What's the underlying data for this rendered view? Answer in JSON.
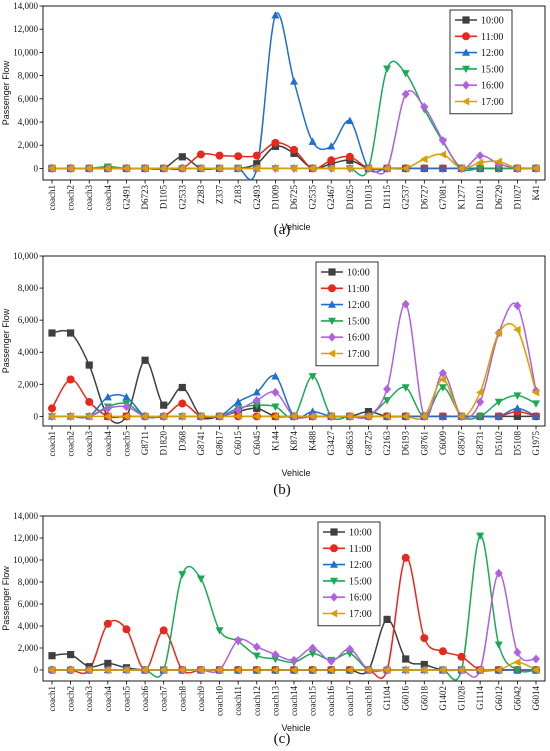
{
  "figure": {
    "captions": [
      "(a)",
      "(b)",
      "(c)"
    ]
  },
  "chart_data": [
    {
      "type": "line",
      "caption": "(a)",
      "ylabel": "Passenger Flow",
      "xlabel": "Vehicle",
      "ylim": [
        -1000,
        14000
      ],
      "yticks": [
        0,
        2000,
        4000,
        6000,
        8000,
        10000,
        12000,
        14000
      ],
      "ytick_labels": [
        "0",
        "2,000",
        "4,000",
        "6,000",
        "8,000",
        "10,000",
        "12,000",
        "14,000"
      ],
      "legend_position": "top-right",
      "categories": [
        "coach1",
        "coach2",
        "coach3",
        "coach4",
        "G2491",
        "D6723",
        "D1105",
        "G2533",
        "Z283",
        "Z337",
        "Z183",
        "G2493",
        "D1009",
        "D6725",
        "G2535",
        "G2467",
        "D1025",
        "D1013",
        "D1115",
        "G2537",
        "D6727",
        "G7081",
        "K1277",
        "D1021",
        "D6729",
        "D1027",
        "K41"
      ],
      "series": [
        {
          "name": "10:00",
          "color": "#3f3f3f",
          "marker": "square",
          "values": [
            0,
            0,
            0,
            0,
            0,
            0,
            0,
            1000,
            0,
            0,
            0,
            400,
            1900,
            1300,
            0,
            400,
            700,
            0,
            0,
            0,
            0,
            0,
            0,
            0,
            0,
            0,
            0
          ]
        },
        {
          "name": "11:00",
          "color": "#e8281c",
          "marker": "circle",
          "values": [
            0,
            0,
            0,
            0,
            0,
            0,
            0,
            0,
            1200,
            1100,
            1050,
            1100,
            2200,
            1600,
            0,
            700,
            1000,
            0,
            0,
            0,
            0,
            0,
            0,
            0,
            0,
            0,
            0
          ]
        },
        {
          "name": "12:00",
          "color": "#1f6fd0",
          "marker": "triangle",
          "values": [
            0,
            0,
            0,
            0,
            0,
            0,
            0,
            0,
            0,
            0,
            0,
            0,
            13200,
            7500,
            2300,
            1900,
            4100,
            0,
            0,
            0,
            0,
            0,
            0,
            0,
            0,
            0,
            0
          ]
        },
        {
          "name": "15:00",
          "color": "#1aaa55",
          "marker": "tri-down",
          "values": [
            0,
            0,
            0,
            150,
            0,
            0,
            0,
            0,
            0,
            0,
            0,
            0,
            0,
            0,
            0,
            0,
            0,
            0,
            8600,
            8200,
            5100,
            2300,
            0,
            0,
            0,
            0,
            0
          ]
        },
        {
          "name": "16:00",
          "color": "#b060e0",
          "marker": "diamond",
          "values": [
            0,
            0,
            0,
            0,
            0,
            0,
            0,
            0,
            0,
            0,
            0,
            0,
            0,
            0,
            0,
            0,
            0,
            0,
            0,
            6400,
            5300,
            2400,
            0,
            1100,
            400,
            0,
            0
          ]
        },
        {
          "name": "17:00",
          "color": "#d8a000",
          "marker": "tri-left",
          "values": [
            0,
            0,
            0,
            0,
            0,
            0,
            0,
            0,
            0,
            0,
            0,
            0,
            0,
            0,
            0,
            0,
            0,
            0,
            0,
            0,
            800,
            1200,
            0,
            500,
            600,
            0,
            0
          ]
        }
      ]
    },
    {
      "type": "line",
      "caption": "(b)",
      "ylabel": "Passenger Flow",
      "xlabel": "Vehicle",
      "ylim": [
        -600,
        10000
      ],
      "yticks": [
        0,
        2000,
        4000,
        6000,
        8000,
        10000
      ],
      "ytick_labels": [
        "0",
        "2,000",
        "4,000",
        "6,000",
        "8,000",
        "10,000"
      ],
      "legend_position": "top-center",
      "categories": [
        "coach1",
        "coach2",
        "coach3",
        "coach4",
        "coach5",
        "G8711",
        "D1820",
        "D368",
        "G8741",
        "G8617",
        "C6015",
        "C6045",
        "K144",
        "K874",
        "K488",
        "G3427",
        "G8653",
        "G8725",
        "G2163",
        "D6193",
        "G8761",
        "C6009",
        "G8507",
        "G8731",
        "D5102",
        "D5108",
        "G1975"
      ],
      "series": [
        {
          "name": "10:00",
          "color": "#3f3f3f",
          "marker": "square",
          "values": [
            5200,
            5200,
            3200,
            0,
            0,
            3500,
            700,
            1800,
            0,
            0,
            300,
            500,
            0,
            0,
            0,
            0,
            0,
            300,
            0,
            0,
            0,
            0,
            0,
            0,
            0,
            0,
            0
          ]
        },
        {
          "name": "11:00",
          "color": "#e8281c",
          "marker": "circle",
          "values": [
            500,
            2300,
            900,
            0,
            0,
            0,
            0,
            800,
            0,
            0,
            0,
            0,
            0,
            0,
            0,
            0,
            0,
            0,
            0,
            0,
            0,
            0,
            0,
            0,
            0,
            300,
            0
          ]
        },
        {
          "name": "12:00",
          "color": "#1f6fd0",
          "marker": "triangle",
          "values": [
            0,
            0,
            0,
            1200,
            1200,
            0,
            0,
            0,
            0,
            0,
            900,
            1500,
            2500,
            0,
            300,
            0,
            0,
            0,
            0,
            0,
            0,
            0,
            0,
            0,
            0,
            500,
            0
          ]
        },
        {
          "name": "15:00",
          "color": "#1aaa55",
          "marker": "tri-down",
          "values": [
            0,
            0,
            0,
            600,
            800,
            0,
            0,
            0,
            0,
            0,
            500,
            700,
            600,
            0,
            2500,
            0,
            0,
            0,
            1000,
            1800,
            0,
            1800,
            0,
            0,
            900,
            1300,
            800
          ]
        },
        {
          "name": "16:00",
          "color": "#b060e0",
          "marker": "diamond",
          "values": [
            0,
            0,
            0,
            500,
            600,
            0,
            0,
            0,
            0,
            0,
            400,
            1000,
            1500,
            0,
            0,
            0,
            0,
            0,
            1700,
            7000,
            0,
            2700,
            0,
            900,
            5200,
            6900,
            1600
          ]
        },
        {
          "name": "17:00",
          "color": "#d8a000",
          "marker": "tri-left",
          "values": [
            0,
            0,
            0,
            0,
            0,
            0,
            0,
            0,
            0,
            0,
            0,
            0,
            0,
            0,
            0,
            0,
            0,
            0,
            0,
            0,
            0,
            2300,
            0,
            1500,
            5200,
            5400,
            1500
          ]
        }
      ]
    },
    {
      "type": "line",
      "caption": "(c)",
      "ylabel": "Passenger Flow",
      "xlabel": "Vehicle",
      "ylim": [
        -1000,
        14000
      ],
      "yticks": [
        0,
        2000,
        4000,
        6000,
        8000,
        10000,
        12000,
        14000
      ],
      "ytick_labels": [
        "0",
        "2,000",
        "4,000",
        "6,000",
        "8,000",
        "10,000",
        "12,000",
        "14,000"
      ],
      "legend_position": "top-center",
      "categories": [
        "coach1",
        "coach2",
        "coach3",
        "coach4",
        "coach5",
        "coach6",
        "coach7",
        "coach8",
        "coach9",
        "coach10",
        "coach11",
        "coach12",
        "coach13",
        "coach14",
        "coach15",
        "coach16",
        "coach17",
        "coach18",
        "G1104",
        "G6016",
        "G6018",
        "G1402",
        "G1028",
        "G1114",
        "G6012",
        "G6042",
        "G6014"
      ],
      "series": [
        {
          "name": "10:00",
          "color": "#3f3f3f",
          "marker": "square",
          "values": [
            1300,
            1400,
            300,
            600,
            200,
            0,
            0,
            0,
            0,
            0,
            0,
            0,
            0,
            0,
            0,
            0,
            0,
            0,
            4600,
            1000,
            500,
            0,
            0,
            0,
            0,
            0,
            0
          ]
        },
        {
          "name": "11:00",
          "color": "#e8281c",
          "marker": "circle",
          "values": [
            0,
            0,
            0,
            4200,
            3700,
            0,
            3600,
            0,
            0,
            0,
            0,
            0,
            0,
            0,
            0,
            0,
            0,
            0,
            0,
            10200,
            2900,
            1700,
            1200,
            0,
            0,
            0,
            0
          ]
        },
        {
          "name": "12:00",
          "color": "#1f6fd0",
          "marker": "triangle",
          "values": [
            0,
            0,
            0,
            0,
            0,
            0,
            0,
            0,
            0,
            0,
            0,
            0,
            0,
            0,
            0,
            0,
            0,
            0,
            0,
            0,
            0,
            0,
            0,
            0,
            0,
            0,
            0
          ]
        },
        {
          "name": "15:00",
          "color": "#1aaa55",
          "marker": "tri-down",
          "values": [
            0,
            0,
            0,
            0,
            0,
            0,
            0,
            8700,
            8300,
            3600,
            2600,
            1300,
            1000,
            700,
            1500,
            900,
            1500,
            0,
            0,
            0,
            0,
            0,
            0,
            12200,
            2300,
            0,
            0
          ]
        },
        {
          "name": "16:00",
          "color": "#b060e0",
          "marker": "diamond",
          "values": [
            0,
            0,
            0,
            0,
            0,
            0,
            0,
            0,
            0,
            0,
            2700,
            2100,
            1400,
            900,
            2000,
            800,
            1900,
            0,
            0,
            0,
            0,
            0,
            0,
            0,
            8800,
            1600,
            1000
          ]
        },
        {
          "name": "17:00",
          "color": "#d8a000",
          "marker": "tri-left",
          "values": [
            0,
            0,
            0,
            0,
            0,
            0,
            0,
            0,
            0,
            0,
            0,
            0,
            0,
            0,
            0,
            0,
            0,
            0,
            0,
            0,
            0,
            0,
            0,
            0,
            0,
            700,
            0
          ]
        }
      ]
    }
  ]
}
